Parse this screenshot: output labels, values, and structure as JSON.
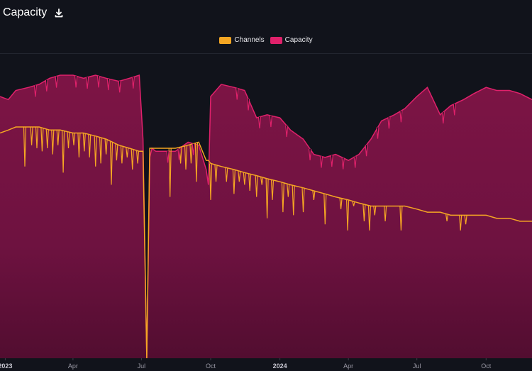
{
  "header": {
    "title": "Capacity",
    "download_icon": "download-icon"
  },
  "legend": [
    {
      "label": "Channels",
      "color": "#f5a623"
    },
    {
      "label": "Capacity",
      "color": "#e0216b"
    }
  ],
  "colors": {
    "background": "#11131b",
    "capacity_fill": "#7a1443",
    "capacity_line": "#e0216b",
    "channels_line": "#f5a623"
  },
  "chart_data": {
    "type": "area",
    "x_ticks": [
      "2023",
      "Apr",
      "Jul",
      "Oct",
      "2024",
      "Apr",
      "Jul",
      "Oct"
    ],
    "x_tick_bold": [
      true,
      false,
      false,
      false,
      true,
      false,
      false,
      false
    ],
    "xlim": [
      "2022-12-25",
      "2024-12-01"
    ],
    "series": [
      {
        "name": "Capacity",
        "x": [
          "2022-12-25",
          "2023-01-05",
          "2023-01-15",
          "2023-02-01",
          "2023-02-15",
          "2023-03-01",
          "2023-03-15",
          "2023-04-01",
          "2023-04-15",
          "2023-05-01",
          "2023-05-15",
          "2023-06-01",
          "2023-06-15",
          "2023-06-28",
          "2023-07-03",
          "2023-07-08",
          "2023-07-12",
          "2023-07-15",
          "2023-07-20",
          "2023-08-01",
          "2023-08-15",
          "2023-09-01",
          "2023-09-15",
          "2023-09-25",
          "2023-09-28",
          "2023-10-01",
          "2023-10-15",
          "2023-11-01",
          "2023-11-15",
          "2023-12-01",
          "2023-12-15",
          "2024-01-01",
          "2024-01-15",
          "2024-02-01",
          "2024-02-15",
          "2024-03-01",
          "2024-03-15",
          "2024-04-01",
          "2024-04-15",
          "2024-05-01",
          "2024-05-15",
          "2024-06-01",
          "2024-06-15",
          "2024-07-01",
          "2024-07-15",
          "2024-08-01",
          "2024-08-15",
          "2024-09-01",
          "2024-09-15",
          "2024-10-01",
          "2024-10-15",
          "2024-11-01",
          "2024-11-15",
          "2024-12-01"
        ],
        "values": [
          0.86,
          0.85,
          0.88,
          0.89,
          0.9,
          0.92,
          0.93,
          0.93,
          0.92,
          0.93,
          0.92,
          0.91,
          0.92,
          0.93,
          0.72,
          0.0,
          0.66,
          0.69,
          0.68,
          0.68,
          0.68,
          0.71,
          0.7,
          0.62,
          0.57,
          0.86,
          0.9,
          0.89,
          0.88,
          0.79,
          0.8,
          0.79,
          0.75,
          0.72,
          0.67,
          0.66,
          0.67,
          0.65,
          0.67,
          0.72,
          0.78,
          0.8,
          0.82,
          0.86,
          0.89,
          0.8,
          0.83,
          0.85,
          0.87,
          0.89,
          0.88,
          0.88,
          0.87,
          0.85
        ]
      },
      {
        "name": "Channels",
        "x": [
          "2022-12-25",
          "2023-01-05",
          "2023-01-15",
          "2023-02-01",
          "2023-02-15",
          "2023-03-01",
          "2023-03-15",
          "2023-04-01",
          "2023-04-15",
          "2023-05-01",
          "2023-05-15",
          "2023-06-01",
          "2023-06-15",
          "2023-06-28",
          "2023-07-03",
          "2023-07-08",
          "2023-07-12",
          "2023-07-15",
          "2023-07-20",
          "2023-08-01",
          "2023-08-15",
          "2023-09-01",
          "2023-09-15",
          "2023-09-25",
          "2023-09-28",
          "2023-10-01",
          "2023-10-15",
          "2023-11-01",
          "2023-11-15",
          "2023-12-01",
          "2023-12-15",
          "2024-01-01",
          "2024-01-15",
          "2024-02-01",
          "2024-02-15",
          "2024-03-01",
          "2024-03-15",
          "2024-04-01",
          "2024-04-15",
          "2024-05-01",
          "2024-05-15",
          "2024-06-01",
          "2024-06-15",
          "2024-07-01",
          "2024-07-15",
          "2024-08-01",
          "2024-08-15",
          "2024-09-01",
          "2024-09-15",
          "2024-10-01",
          "2024-10-15",
          "2024-11-01",
          "2024-11-15",
          "2024-12-01"
        ],
        "values": [
          0.74,
          0.75,
          0.76,
          0.76,
          0.76,
          0.75,
          0.75,
          0.74,
          0.74,
          0.73,
          0.72,
          0.7,
          0.69,
          0.68,
          0.68,
          0.0,
          0.69,
          0.69,
          0.69,
          0.69,
          0.69,
          0.7,
          0.71,
          0.65,
          0.65,
          0.64,
          0.63,
          0.62,
          0.61,
          0.6,
          0.59,
          0.58,
          0.57,
          0.56,
          0.55,
          0.54,
          0.53,
          0.52,
          0.51,
          0.5,
          0.5,
          0.5,
          0.5,
          0.49,
          0.48,
          0.48,
          0.47,
          0.47,
          0.47,
          0.47,
          0.46,
          0.46,
          0.45,
          0.45
        ]
      }
    ],
    "dips_channels": [
      [
        "2023-01-27",
        0.63
      ],
      [
        "2023-02-05",
        0.7
      ],
      [
        "2023-02-12",
        0.69
      ],
      [
        "2023-02-19",
        0.68
      ],
      [
        "2023-02-26",
        0.69
      ],
      [
        "2023-03-05",
        0.67
      ],
      [
        "2023-03-12",
        0.7
      ],
      [
        "2023-03-19",
        0.61
      ],
      [
        "2023-03-26",
        0.69
      ],
      [
        "2023-04-02",
        0.7
      ],
      [
        "2023-04-09",
        0.66
      ],
      [
        "2023-04-16",
        0.68
      ],
      [
        "2023-04-23",
        0.66
      ],
      [
        "2023-05-01",
        0.63
      ],
      [
        "2023-05-08",
        0.64
      ],
      [
        "2023-05-15",
        0.67
      ],
      [
        "2023-05-22",
        0.57
      ],
      [
        "2023-05-29",
        0.65
      ],
      [
        "2023-06-05",
        0.64
      ],
      [
        "2023-06-12",
        0.66
      ],
      [
        "2023-06-19",
        0.62
      ],
      [
        "2023-06-26",
        0.64
      ],
      [
        "2023-08-08",
        0.53
      ],
      [
        "2023-08-22",
        0.64
      ],
      [
        "2023-08-29",
        0.62
      ],
      [
        "2023-09-05",
        0.64
      ],
      [
        "2023-09-12",
        0.58
      ],
      [
        "2023-10-01",
        0.52
      ],
      [
        "2023-10-08",
        0.58
      ],
      [
        "2023-10-22",
        0.58
      ],
      [
        "2023-11-01",
        0.54
      ],
      [
        "2023-11-08",
        0.58
      ],
      [
        "2023-11-15",
        0.57
      ],
      [
        "2023-11-22",
        0.55
      ],
      [
        "2023-12-01",
        0.53
      ],
      [
        "2023-12-08",
        0.57
      ],
      [
        "2023-12-15",
        0.46
      ],
      [
        "2023-12-22",
        0.52
      ],
      [
        "2024-01-05",
        0.48
      ],
      [
        "2024-01-12",
        0.53
      ],
      [
        "2024-01-19",
        0.47
      ],
      [
        "2024-02-01",
        0.48
      ],
      [
        "2024-02-15",
        0.52
      ],
      [
        "2024-03-01",
        0.44
      ],
      [
        "2024-03-22",
        0.49
      ],
      [
        "2024-03-31",
        0.42
      ],
      [
        "2024-04-08",
        0.5
      ],
      [
        "2024-04-22",
        0.45
      ],
      [
        "2024-04-29",
        0.42
      ],
      [
        "2024-05-06",
        0.47
      ],
      [
        "2024-05-20",
        0.45
      ],
      [
        "2024-06-10",
        0.42
      ],
      [
        "2024-08-10",
        0.45
      ],
      [
        "2024-08-28",
        0.42
      ],
      [
        "2024-09-04",
        0.44
      ]
    ]
  }
}
